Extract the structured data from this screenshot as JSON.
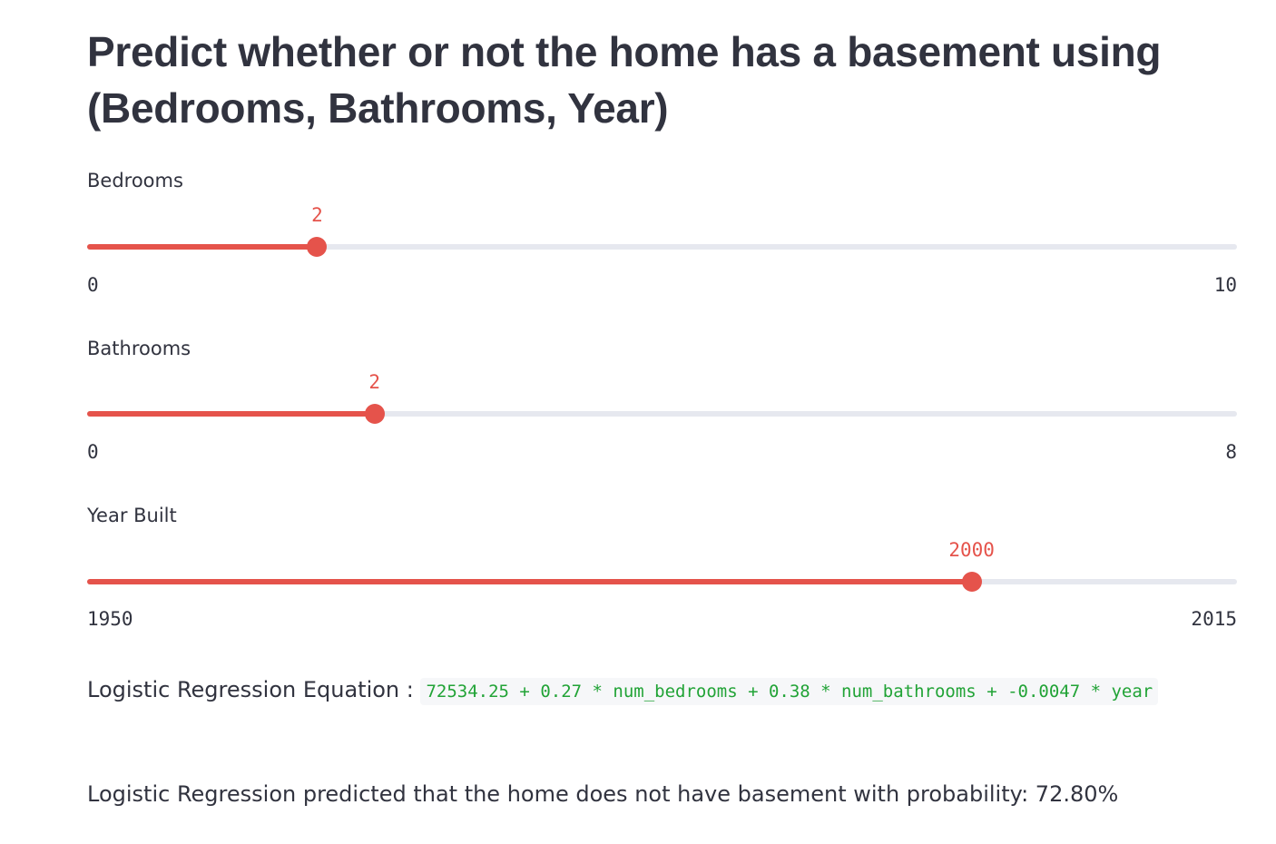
{
  "header": {
    "title": "Predict whether or not the home has a basement using (Bedrooms, Bathrooms, Year)"
  },
  "sliders": [
    {
      "label": "Bedrooms",
      "min": 0,
      "max": 10,
      "value": 2
    },
    {
      "label": "Bathrooms",
      "min": 0,
      "max": 8,
      "value": 2
    },
    {
      "label": "Year Built",
      "min": 1950,
      "max": 2015,
      "value": 2000
    }
  ],
  "equation": {
    "label": "Logistic Regression Equation : ",
    "code": "72534.25 + 0.27 * num_bedrooms + 0.38 * num_bathrooms + -0.0047 * year"
  },
  "prediction": {
    "text": "Logistic Regression predicted that the home does not have basement with probability: 72.80%"
  },
  "colors": {
    "accent": "#e5534b",
    "track": "#e6e8ef",
    "code_text": "#21a336",
    "code_bg": "#f6f7f9",
    "text": "#31333f"
  }
}
